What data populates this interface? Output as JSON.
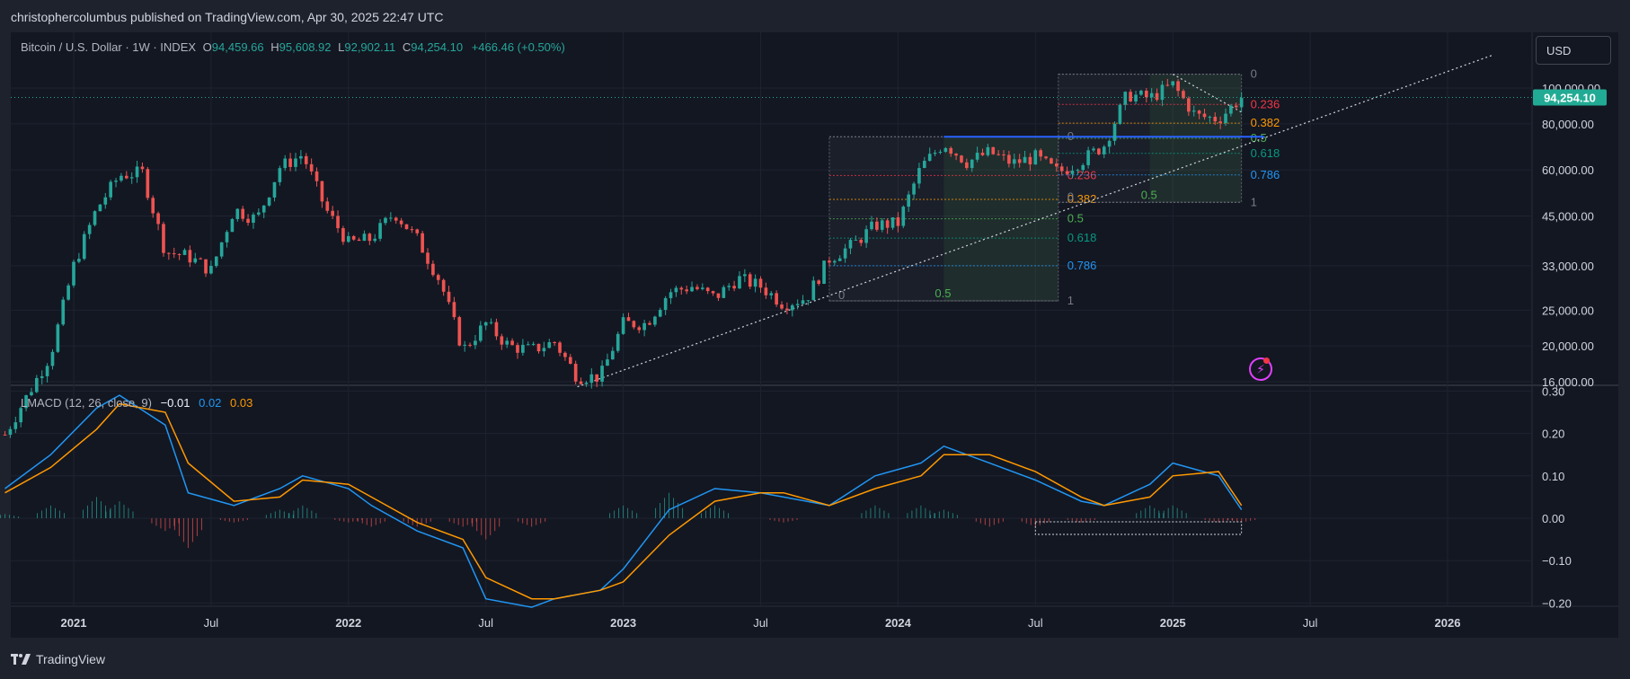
{
  "publisher": "christophercolumbus published on TradingView.com, Apr 30, 2025 22:47 UTC",
  "legend": {
    "title": "Bitcoin / U.S. Dollar · 1W · INDEX",
    "open_label": "O",
    "open": "94,459.66",
    "high_label": "H",
    "high": "95,608.92",
    "low_label": "L",
    "low": "92,902.11",
    "close_label": "C",
    "close": "94,254.10",
    "change": "+466.46 (+0.50%)"
  },
  "macd_legend": {
    "title": "LMACD (12, 26, close, 9)",
    "v1": "−0.01",
    "v2": "0.02",
    "v3": "0.03"
  },
  "currency": "USD",
  "brand": "TradingView",
  "colors": {
    "up": "#26a69a",
    "down": "#ef5350",
    "macd": "#2196f3",
    "signal": "#ff9800",
    "badge": "#22ab94"
  },
  "chart_data": [
    {
      "type": "candlestick",
      "title": "Bitcoin / U.S. Dollar · 1W · INDEX",
      "y_scale": "log",
      "price_ticks": [
        "16,000.00",
        "20,000.00",
        "25,000.00",
        "33,000.00",
        "45,000.00",
        "60,000.00",
        "80,000.00",
        "100,000.00"
      ],
      "price_tick_values": [
        16000,
        20000,
        25000,
        33000,
        45000,
        60000,
        80000,
        100000
      ],
      "last_price": "94,254.10",
      "x_ticks": [
        "2021",
        "Jul",
        "2022",
        "Jul",
        "2023",
        "Jul",
        "2024",
        "Jul",
        "2025",
        "Jul",
        "2026"
      ],
      "x_tick_values": [
        "2021-01",
        "2021-07",
        "2022-01",
        "2022-07",
        "2023-01",
        "2023-07",
        "2024-01",
        "2024-07",
        "2025-01",
        "2025-07",
        "2026-01"
      ],
      "close_path": [
        [
          "2020-10",
          11500
        ],
        [
          "2020-12",
          19000
        ],
        [
          "2021-01",
          33000
        ],
        [
          "2021-02",
          47000
        ],
        [
          "2021-03",
          58000
        ],
        [
          "2021-04",
          59000
        ],
        [
          "2021-05",
          36000
        ],
        [
          "2021-06",
          35000
        ],
        [
          "2021-07",
          32000
        ],
        [
          "2021-08",
          47000
        ],
        [
          "2021-09",
          44000
        ],
        [
          "2021-10",
          61000
        ],
        [
          "2021-11",
          66000
        ],
        [
          "2021-12",
          47000
        ],
        [
          "2022-01",
          38000
        ],
        [
          "2022-02",
          39000
        ],
        [
          "2022-03",
          46000
        ],
        [
          "2022-04",
          39000
        ],
        [
          "2022-05",
          30000
        ],
        [
          "2022-06",
          19500
        ],
        [
          "2022-07",
          23000
        ],
        [
          "2022-08",
          20000
        ],
        [
          "2022-09",
          19500
        ],
        [
          "2022-10",
          20500
        ],
        [
          "2022-11",
          16500
        ],
        [
          "2022-12",
          16500
        ],
        [
          "2023-01",
          23000
        ],
        [
          "2023-02",
          23000
        ],
        [
          "2023-03",
          28000
        ],
        [
          "2023-04",
          29000
        ],
        [
          "2023-05",
          27000
        ],
        [
          "2023-06",
          30500
        ],
        [
          "2023-07",
          29000
        ],
        [
          "2023-08",
          26000
        ],
        [
          "2023-09",
          27000
        ],
        [
          "2023-10",
          34500
        ],
        [
          "2023-11",
          37500
        ],
        [
          "2023-12",
          42500
        ],
        [
          "2024-01",
          43000
        ],
        [
          "2024-02",
          61000
        ],
        [
          "2024-03",
          71000
        ],
        [
          "2024-04",
          63000
        ],
        [
          "2024-05",
          67000
        ],
        [
          "2024-06",
          62500
        ],
        [
          "2024-07",
          65000
        ],
        [
          "2024-08",
          59000
        ],
        [
          "2024-09",
          63500
        ],
        [
          "2024-10",
          70000
        ],
        [
          "2024-11",
          96000
        ],
        [
          "2024-12",
          94000
        ],
        [
          "2025-01",
          102000
        ],
        [
          "2025-02",
          84000
        ],
        [
          "2025-03",
          82500
        ],
        [
          "2025-04",
          94254
        ]
      ],
      "fibonacci_retracements": [
        {
          "levels": [
            "0",
            "0.236",
            "0.382",
            "0.5",
            "0.618",
            "0.786",
            "1"
          ],
          "high": 73800,
          "low": 26500,
          "from": "2023-10",
          "to": "2024-08"
        },
        {
          "levels": [
            "0",
            "0.236",
            "0.382",
            "0.5",
            "0.618",
            "0.786",
            "1"
          ],
          "high": 109000,
          "low": 49000,
          "from": "2024-08",
          "to": "2025-04"
        }
      ],
      "fib_colors": [
        "#787b86",
        "#f23645",
        "#ff9800",
        "#4caf50",
        "#089981",
        "#2196f3",
        "#787b86"
      ],
      "fib_label_values": {
        "zero": "0",
        "one": "1",
        "half": "0.5"
      },
      "horizontal_line": {
        "price": 73800,
        "from": "2024-03",
        "to": "2025-05",
        "color": "#2962ff"
      },
      "trendline": {
        "from": [
          "2022-11",
          15500
        ],
        "to": [
          "2026-03",
          123000
        ]
      },
      "descending_line": {
        "from": [
          "2025-01",
          109000
        ],
        "to": [
          "2025-04",
          86000
        ]
      }
    },
    {
      "type": "line",
      "title": "LMACD (12, 26, close, 9)",
      "y_ticks": [
        "0.30",
        "0.20",
        "0.10",
        "0.00",
        "−0.10",
        "−0.20"
      ],
      "y_tick_values": [
        0.3,
        0.2,
        0.1,
        0.0,
        -0.1,
        -0.2
      ],
      "x": [
        "2020-10",
        "2020-12",
        "2021-02",
        "2021-03",
        "2021-05",
        "2021-06",
        "2021-08",
        "2021-10",
        "2021-11",
        "2022-01",
        "2022-02",
        "2022-04",
        "2022-06",
        "2022-07",
        "2022-09",
        "2022-10",
        "2022-12",
        "2023-01",
        "2023-03",
        "2023-05",
        "2023-07",
        "2023-08",
        "2023-10",
        "2023-12",
        "2024-02",
        "2024-03",
        "2024-05",
        "2024-07",
        "2024-09",
        "2024-10",
        "2024-12",
        "2025-01",
        "2025-03",
        "2025-04"
      ],
      "series": [
        {
          "name": "MACD",
          "values": [
            0.07,
            0.15,
            0.26,
            0.29,
            0.22,
            0.06,
            0.03,
            0.07,
            0.1,
            0.07,
            0.03,
            -0.03,
            -0.07,
            -0.19,
            -0.21,
            -0.19,
            -0.17,
            -0.12,
            0.02,
            0.07,
            0.06,
            0.05,
            0.03,
            0.1,
            0.13,
            0.17,
            0.13,
            0.09,
            0.04,
            0.03,
            0.08,
            0.13,
            0.1,
            0.02
          ]
        },
        {
          "name": "Signal",
          "values": [
            0.06,
            0.12,
            0.21,
            0.27,
            0.25,
            0.13,
            0.04,
            0.05,
            0.09,
            0.08,
            0.05,
            -0.01,
            -0.05,
            -0.14,
            -0.19,
            -0.19,
            -0.17,
            -0.15,
            -0.04,
            0.04,
            0.06,
            0.06,
            0.03,
            0.07,
            0.1,
            0.15,
            0.15,
            0.11,
            0.05,
            0.03,
            0.05,
            0.1,
            0.11,
            0.03
          ]
        }
      ],
      "histogram": [
        0.01,
        0.03,
        0.05,
        0.04,
        -0.03,
        -0.07,
        -0.01,
        0.02,
        0.03,
        -0.01,
        -0.02,
        -0.02,
        -0.02,
        -0.05,
        -0.02,
        0.0,
        0.0,
        0.03,
        0.06,
        0.03,
        0.0,
        -0.01,
        0.0,
        0.03,
        0.03,
        0.02,
        -0.02,
        -0.02,
        -0.01,
        0.0,
        0.03,
        0.03,
        -0.01,
        -0.01
      ]
    }
  ]
}
